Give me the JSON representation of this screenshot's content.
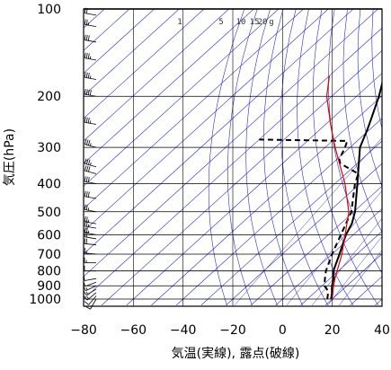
{
  "chart_data": {
    "type": "line",
    "subtype": "skew-t log-p sounding",
    "xlabel": "気温(実線), 露点(破線)",
    "ylabel": "気圧(hPa)",
    "x_ticks": [
      -80,
      -60,
      -40,
      -20,
      0,
      20,
      40
    ],
    "y_ticks": [
      100,
      200,
      300,
      400,
      500,
      600,
      700,
      800,
      900,
      1000
    ],
    "xlim": [
      -80,
      40
    ],
    "ylim": [
      1050,
      100
    ],
    "y_scale": "log",
    "mixing_ratio_labels": [
      "1",
      "5",
      "10",
      "15",
      "20",
      "g"
    ],
    "series": [
      {
        "role": "temperature",
        "style": "solid",
        "color": "#000000",
        "points": [
          {
            "p": 1000,
            "t": 19.5
          },
          {
            "p": 950,
            "t": 17
          },
          {
            "p": 925,
            "t": 15.5
          },
          {
            "p": 900,
            "t": 14
          },
          {
            "p": 850,
            "t": 11.5
          },
          {
            "p": 800,
            "t": 8
          },
          {
            "p": 700,
            "t": 3
          },
          {
            "p": 600,
            "t": -3
          },
          {
            "p": 550,
            "t": -5.5
          },
          {
            "p": 500,
            "t": -9.5
          },
          {
            "p": 400,
            "t": -21
          },
          {
            "p": 350,
            "t": -28
          },
          {
            "p": 300,
            "t": -36
          },
          {
            "p": 260,
            "t": -41
          },
          {
            "p": 240,
            "t": -44
          },
          {
            "p": 200,
            "t": -51
          },
          {
            "p": 170,
            "t": -58
          },
          {
            "p": 150,
            "t": -63
          },
          {
            "p": 130,
            "t": -67
          },
          {
            "p": 115,
            "t": -70
          },
          {
            "p": 100,
            "t": -73
          }
        ]
      },
      {
        "role": "dewpoint",
        "style": "dashed",
        "color": "#000000",
        "points": [
          {
            "p": 1000,
            "t": 18
          },
          {
            "p": 950,
            "t": 15.5
          },
          {
            "p": 925,
            "t": 13.5
          },
          {
            "p": 900,
            "t": 11
          },
          {
            "p": 850,
            "t": 8
          },
          {
            "p": 800,
            "t": 5
          },
          {
            "p": 700,
            "t": 0
          },
          {
            "p": 600,
            "t": -5
          },
          {
            "p": 500,
            "t": -11
          },
          {
            "p": 400,
            "t": -22
          },
          {
            "p": 370,
            "t": -25
          },
          {
            "p": 350,
            "t": -33
          },
          {
            "p": 340,
            "t": -37
          },
          {
            "p": 330,
            "t": -39
          },
          {
            "p": 320,
            "t": -40
          },
          {
            "p": 300,
            "t": -42
          },
          {
            "p": 285,
            "t": -44
          },
          {
            "p": 282,
            "t": -80
          }
        ]
      },
      {
        "role": "parcel",
        "style": "solid",
        "color": "#e00000",
        "points": [
          {
            "p": 1000,
            "t": 20
          },
          {
            "p": 925,
            "t": 16
          },
          {
            "p": 850,
            "t": 12
          },
          {
            "p": 700,
            "t": 4
          },
          {
            "p": 500,
            "t": -12
          },
          {
            "p": 400,
            "t": -26
          },
          {
            "p": 300,
            "t": -46
          },
          {
            "p": 250,
            "t": -58
          },
          {
            "p": 200,
            "t": -72
          },
          {
            "p": 170,
            "t": -80
          }
        ]
      }
    ],
    "wind_barbs": [
      {
        "p": 1000,
        "ws": 10,
        "wd": 210
      },
      {
        "p": 975,
        "ws": 10,
        "wd": 220
      },
      {
        "p": 950,
        "ws": 15,
        "wd": 230
      },
      {
        "p": 925,
        "ws": 15,
        "wd": 240
      },
      {
        "p": 900,
        "ws": 15,
        "wd": 245
      },
      {
        "p": 875,
        "ws": 10,
        "wd": 250
      },
      {
        "p": 850,
        "ws": 10,
        "wd": 260
      },
      {
        "p": 800,
        "ws": 10,
        "wd": 270
      },
      {
        "p": 750,
        "ws": 15,
        "wd": 270
      },
      {
        "p": 700,
        "ws": 15,
        "wd": 275
      },
      {
        "p": 650,
        "ws": 20,
        "wd": 275
      },
      {
        "p": 620,
        "ws": 20,
        "wd": 280
      },
      {
        "p": 600,
        "ws": 25,
        "wd": 280
      },
      {
        "p": 570,
        "ws": 25,
        "wd": 280
      },
      {
        "p": 550,
        "ws": 25,
        "wd": 280
      },
      {
        "p": 500,
        "ws": 25,
        "wd": 280
      },
      {
        "p": 450,
        "ws": 30,
        "wd": 280
      },
      {
        "p": 400,
        "ws": 30,
        "wd": 280
      },
      {
        "p": 370,
        "ws": 30,
        "wd": 285
      },
      {
        "p": 350,
        "ws": 35,
        "wd": 285
      },
      {
        "p": 300,
        "ws": 35,
        "wd": 285
      },
      {
        "p": 250,
        "ws": 35,
        "wd": 280
      },
      {
        "p": 200,
        "ws": 40,
        "wd": 280
      },
      {
        "p": 175,
        "ws": 35,
        "wd": 280
      },
      {
        "p": 150,
        "ws": 35,
        "wd": 280
      },
      {
        "p": 130,
        "ws": 30,
        "wd": 280
      },
      {
        "p": 115,
        "ws": 25,
        "wd": 280
      },
      {
        "p": 105,
        "ws": 20,
        "wd": 280
      }
    ],
    "grid": true,
    "colors": {
      "background_lines": "#2b2bd0",
      "grid": "#000000",
      "parcel": "#e00000",
      "profile": "#000000"
    }
  }
}
